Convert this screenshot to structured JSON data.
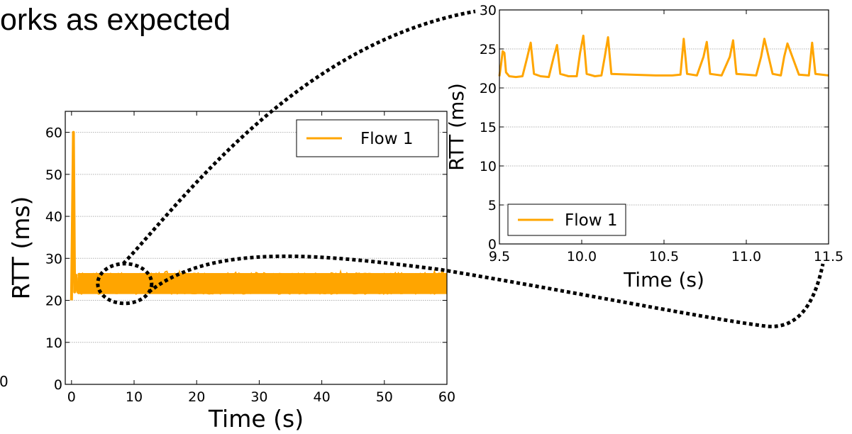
{
  "slide": {
    "title_fragment": "orks as expected",
    "stray_tick": "0"
  },
  "colors": {
    "series": "#ffa500",
    "grid": "#b0b0b0",
    "connector": "#000000"
  },
  "chart_data": [
    {
      "type": "line",
      "xlabel": "Time (s)",
      "ylabel": "RTT (ms)",
      "xlim": [
        -1,
        60
      ],
      "ylim": [
        0,
        65
      ],
      "xticks": [
        0,
        10,
        20,
        30,
        40,
        50,
        60
      ],
      "yticks": [
        0,
        10,
        20,
        30,
        40,
        50,
        60
      ],
      "grid": "horizontal dashed",
      "legend": {
        "position": "top-right"
      },
      "series": [
        {
          "name": "Flow 1",
          "color": "#ffa500",
          "x": [
            0,
            0.3,
            0.5,
            0.7,
            1,
            2,
            5,
            10,
            20,
            30,
            40,
            50,
            60
          ],
          "y": [
            20,
            60,
            22,
            26,
            22,
            25,
            23,
            24,
            25,
            24,
            25,
            24,
            25
          ],
          "band_low": 21.5,
          "band_high": 26.5,
          "spike_max": 27
        }
      ]
    },
    {
      "type": "line",
      "xlabel": "Time (s)",
      "ylabel": "RTT (ms)",
      "xlim": [
        9.5,
        11.5
      ],
      "ylim": [
        0,
        30
      ],
      "xticks": [
        "9.5",
        "10.0",
        "10.5",
        "11.0",
        "11.5"
      ],
      "yticks": [
        0,
        5,
        10,
        15,
        20,
        25,
        30
      ],
      "grid": "horizontal dashed",
      "legend": {
        "position": "bottom-left"
      },
      "series": [
        {
          "name": "Flow 1",
          "color": "#ffa500",
          "x": [
            9.5,
            9.51,
            9.52,
            9.53,
            9.54,
            9.56,
            9.6,
            9.64,
            9.67,
            9.69,
            9.71,
            9.75,
            9.8,
            9.83,
            9.85,
            9.87,
            9.92,
            9.97,
            9.99,
            10.01,
            10.03,
            10.08,
            10.12,
            10.14,
            10.16,
            10.18,
            10.3,
            10.45,
            10.55,
            10.6,
            10.62,
            10.64,
            10.7,
            10.74,
            10.76,
            10.78,
            10.85,
            10.9,
            10.92,
            10.94,
            11.0,
            11.06,
            11.09,
            11.11,
            11.16,
            11.21,
            11.23,
            11.25,
            11.32,
            11.38,
            11.4,
            11.42,
            11.5
          ],
          "y": [
            21.5,
            23,
            24.7,
            24.5,
            22,
            21.5,
            21.4,
            21.5,
            24,
            25.8,
            21.8,
            21.5,
            21.4,
            24,
            25.5,
            21.8,
            21.5,
            21.5,
            24.5,
            26.7,
            21.8,
            21.5,
            21.6,
            24,
            26.5,
            21.8,
            21.7,
            21.6,
            21.6,
            21.7,
            26.3,
            21.8,
            21.6,
            24,
            25.9,
            21.8,
            21.6,
            24,
            26.1,
            21.8,
            21.7,
            21.6,
            24,
            26.3,
            21.8,
            21.6,
            24,
            25.7,
            21.7,
            21.6,
            25.8,
            21.8,
            21.6
          ]
        }
      ]
    }
  ]
}
